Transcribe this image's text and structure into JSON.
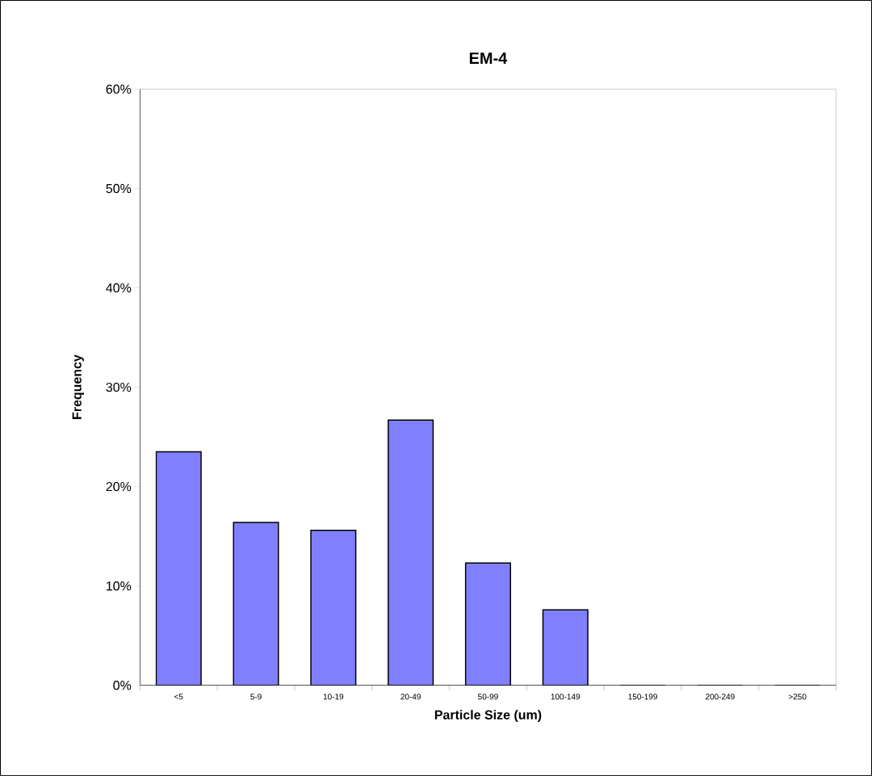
{
  "chart_data": {
    "type": "bar",
    "title": "EM-4",
    "xlabel": "Particle Size (um)",
    "ylabel": "Frequency",
    "categories": [
      "<5",
      "5-9",
      "10-19",
      "20-49",
      "50-99",
      "100-149",
      "150-199",
      "200-249",
      ">250"
    ],
    "values": [
      23.5,
      16.4,
      15.6,
      26.7,
      12.3,
      7.6,
      0,
      0,
      0
    ],
    "color": "#8080ff",
    "ylim": [
      0,
      60
    ],
    "yticks": [
      {
        "value": 0,
        "label": "0%"
      },
      {
        "value": 10,
        "label": "10%"
      },
      {
        "value": 20,
        "label": "20%"
      },
      {
        "value": 30,
        "label": "30%"
      },
      {
        "value": 40,
        "label": "40%"
      },
      {
        "value": 50,
        "label": "50%"
      },
      {
        "value": 60,
        "label": "60%"
      }
    ],
    "grid": false
  }
}
